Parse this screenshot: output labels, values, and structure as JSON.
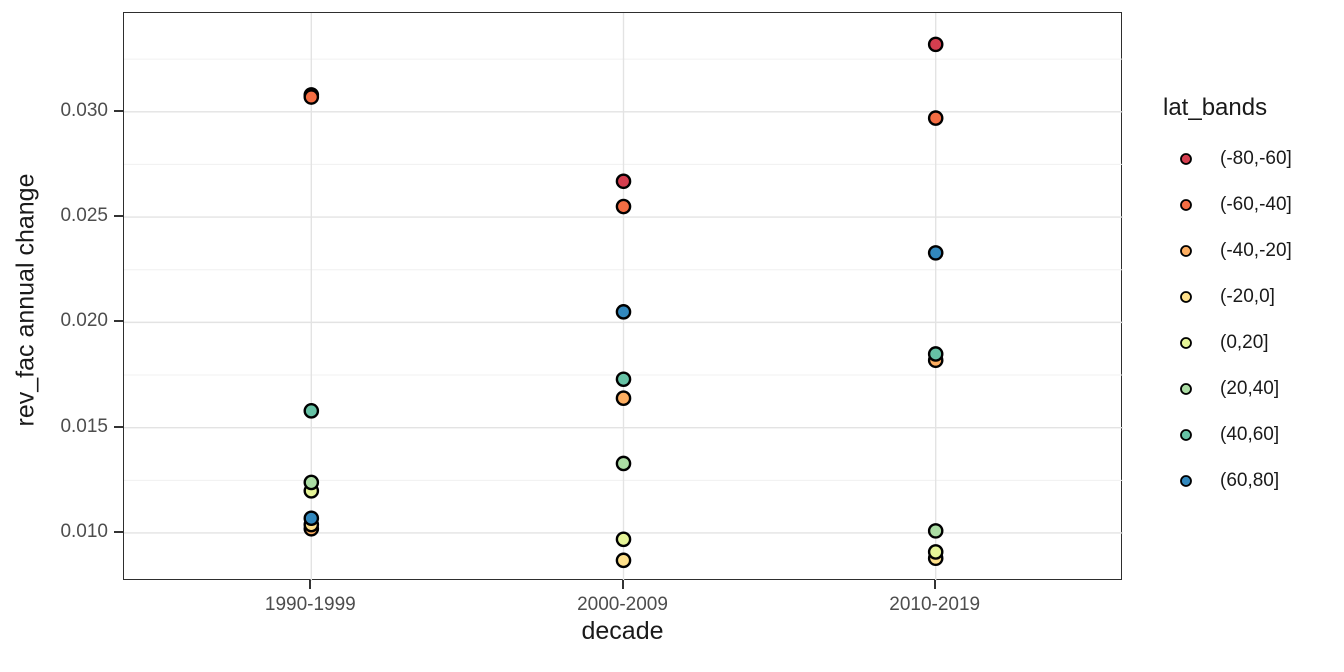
{
  "chart_data": {
    "type": "scatter",
    "title": "",
    "xlabel": "decade",
    "ylabel": "rev_fac annual change",
    "x_categories": [
      "1990-1999",
      "2000-2009",
      "2010-2019"
    ],
    "series": [
      {
        "name": "(-80,-60]",
        "color": "#D53E4F",
        "values": [
          0.0308,
          0.0267,
          0.0332
        ]
      },
      {
        "name": "(-60,-40]",
        "color": "#F46D43",
        "values": [
          0.0307,
          0.0255,
          0.0297
        ]
      },
      {
        "name": "(-40,-20]",
        "color": "#FDAE61",
        "values": [
          0.0102,
          0.0164,
          0.0182
        ]
      },
      {
        "name": "(-20,0]",
        "color": "#FEE08B",
        "values": [
          0.0104,
          0.0087,
          0.0088
        ]
      },
      {
        "name": "(0,20]",
        "color": "#E6F598",
        "values": [
          0.012,
          0.0097,
          0.0091
        ]
      },
      {
        "name": "(20,40]",
        "color": "#ABDDA4",
        "values": [
          0.0124,
          0.0133,
          0.0101
        ]
      },
      {
        "name": "(40,60]",
        "color": "#66C2A5",
        "values": [
          0.0158,
          0.0173,
          0.0185
        ]
      },
      {
        "name": "(60,80]",
        "color": "#3288BD",
        "values": [
          0.0107,
          0.0205,
          0.0233
        ]
      }
    ],
    "ylim": [
      0.00772,
      0.03469
    ],
    "y_major_ticks": [
      {
        "value": 0.03,
        "label": "0.030"
      },
      {
        "value": 0.025,
        "label": "0.025"
      },
      {
        "value": 0.02,
        "label": "0.020"
      },
      {
        "value": 0.015,
        "label": "0.015"
      },
      {
        "value": 0.01,
        "label": "0.010"
      }
    ],
    "y_minor_ticks": [
      0.0325,
      0.0275,
      0.0225,
      0.0175,
      0.0125
    ],
    "legend_title": "lat_bands",
    "legend_position": "right",
    "grid": true,
    "colors": {
      "grid_major": "#e3e3e3",
      "grid_minor": "#f0f0f0",
      "point_stroke": "#000000",
      "panel_border": "#2e2e2e",
      "tick_label": "#4d4d4d",
      "title_text": "#1a1a1a"
    }
  }
}
